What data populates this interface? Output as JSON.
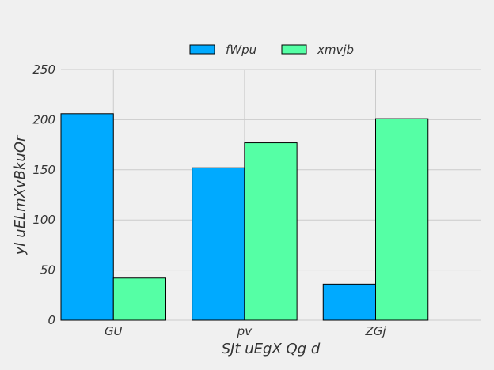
{
  "chart_data": {
    "type": "bar",
    "title": "",
    "xlabel": "SJt uEgX Qg d",
    "ylabel": "yI uELmXvBkuOr",
    "categories": [
      "GU",
      "pv",
      "ZGj"
    ],
    "series": [
      {
        "name": "fWpu",
        "values": [
          206,
          152,
          36
        ],
        "color": "#00aaff"
      },
      {
        "name": "xmvjb",
        "values": [
          42,
          177,
          201
        ],
        "color": "#55ffa5"
      }
    ],
    "ylim": [
      0,
      250
    ],
    "yticks": [
      0,
      50,
      100,
      150,
      200,
      250
    ],
    "grid": true,
    "legend_position": "top-center",
    "bar_edge_color": "#000000",
    "grid_color": "#cbcbcb",
    "background_color": "#f0f0f0"
  }
}
